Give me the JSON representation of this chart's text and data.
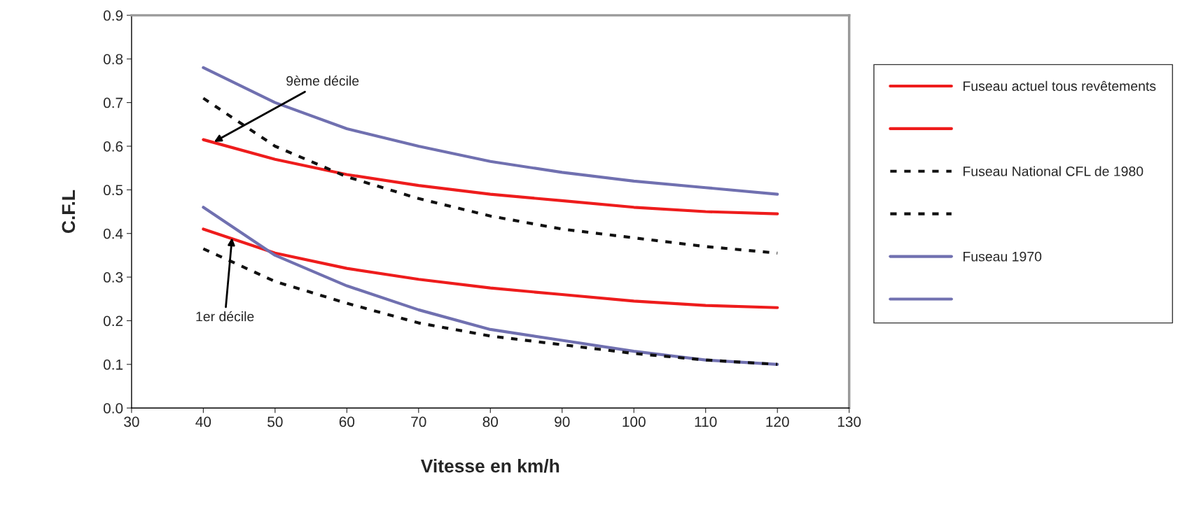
{
  "chart_data": {
    "type": "line",
    "xlabel": "Vitesse en km/h",
    "ylabel": "C.F.L",
    "x": [
      40,
      50,
      60,
      70,
      80,
      90,
      100,
      110,
      120
    ],
    "series": [
      {
        "name": "Fuseau actuel tous revêtements",
        "color": "#ee1c1c",
        "line_style": "solid",
        "values": [
          0.615,
          0.57,
          0.535,
          0.51,
          0.49,
          0.475,
          0.46,
          0.45,
          0.445
        ]
      },
      {
        "color": "#ee1c1c",
        "line_style": "solid",
        "values": [
          0.41,
          0.355,
          0.32,
          0.295,
          0.275,
          0.26,
          0.245,
          0.235,
          0.23
        ]
      },
      {
        "name": "Fuseau National CFL de 1980",
        "color": "#111111",
        "line_style": "dashed",
        "values": [
          0.71,
          0.6,
          0.53,
          0.48,
          0.44,
          0.41,
          0.39,
          0.37,
          0.355
        ]
      },
      {
        "color": "#111111",
        "line_style": "dashed",
        "values": [
          0.365,
          0.29,
          0.24,
          0.195,
          0.165,
          0.145,
          0.125,
          0.11,
          0.1
        ]
      },
      {
        "name": "Fuseau 1970",
        "color": "#7070b0",
        "line_style": "solid",
        "values": [
          0.78,
          0.7,
          0.64,
          0.6,
          0.565,
          0.54,
          0.52,
          0.505,
          0.49
        ]
      },
      {
        "color": "#7070b0",
        "line_style": "solid",
        "values": [
          0.46,
          0.35,
          0.28,
          0.225,
          0.18,
          0.155,
          0.13,
          0.11,
          0.1
        ]
      }
    ],
    "annotations": [
      {
        "text": "9ème décile",
        "x": 41.5,
        "y": 0.61
      },
      {
        "text": "1er décile",
        "x": 44,
        "y": 0.39
      }
    ],
    "xlim": [
      30,
      130
    ],
    "xticks": [
      30,
      40,
      50,
      60,
      70,
      80,
      90,
      100,
      110,
      120,
      130
    ],
    "ylim": [
      0,
      0.9
    ],
    "yticks": [
      {
        "value": 0,
        "label": "0.0"
      },
      0.1,
      0.2,
      0.3,
      0.4,
      0.5,
      0.6,
      0.7,
      0.8,
      0.9
    ],
    "grid": false,
    "legend": "right",
    "marker": "none"
  }
}
